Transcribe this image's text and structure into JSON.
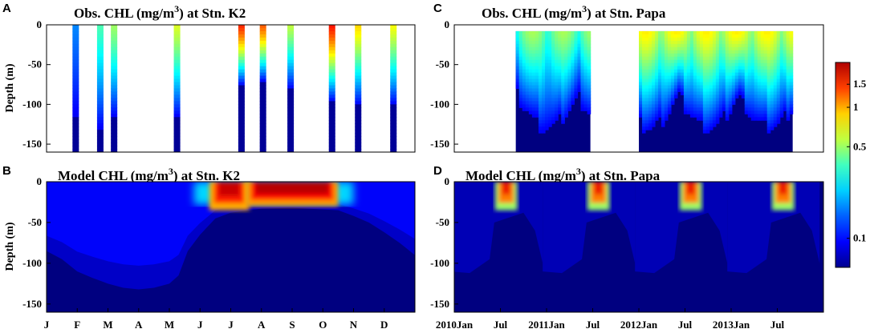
{
  "figure": {
    "colormap_name": "jet",
    "colormap": [
      "#00008f",
      "#0000ff",
      "#0080ff",
      "#00ffff",
      "#80ff80",
      "#ffff00",
      "#ff8000",
      "#ff0000",
      "#800000"
    ],
    "background_color": "#ffffff",
    "deep_color": "#000080"
  },
  "chart_data": [
    {
      "type": "heatmap",
      "panel_label": "A",
      "title_parts": [
        "Obs. CHL (mg/m",
        "3",
        ") at Stn. K2"
      ],
      "ylabel": "Depth (m)",
      "ylim": [
        -160,
        0
      ],
      "yticks": [
        0,
        -50,
        -100,
        -150
      ],
      "xlim": [
        0,
        12
      ],
      "xtick_labels": [],
      "profiles": [
        {
          "x": 0.95,
          "deep_from": -115,
          "surface_chl": 0.15
        },
        {
          "x": 1.75,
          "deep_from": -130,
          "surface_chl": 0.3
        },
        {
          "x": 2.2,
          "deep_from": -115,
          "surface_chl": 0.4
        },
        {
          "x": 4.25,
          "deep_from": -115,
          "surface_chl": 0.5
        },
        {
          "x": 6.35,
          "deep_from": -75,
          "surface_chl": 1.2
        },
        {
          "x": 7.05,
          "deep_from": -70,
          "surface_chl": 1.0
        },
        {
          "x": 7.95,
          "deep_from": -80,
          "surface_chl": 0.45
        },
        {
          "x": 9.3,
          "deep_from": -95,
          "surface_chl": 1.3
        },
        {
          "x": 10.15,
          "deep_from": -100,
          "surface_chl": 0.65
        },
        {
          "x": 11.3,
          "deep_from": -100,
          "surface_chl": 0.55
        }
      ]
    },
    {
      "type": "heatmap",
      "panel_label": "B",
      "title_parts": [
        "Model CHL (mg/m",
        "3",
        ") at Stn. K2"
      ],
      "ylabel": "Depth (m)",
      "ylim": [
        -160,
        0
      ],
      "yticks": [
        0,
        -50,
        -100,
        -150
      ],
      "xlim": [
        0,
        12
      ],
      "xtick_labels": [
        "J",
        "F",
        "M",
        "A",
        "M",
        "J",
        "J",
        "A",
        "S",
        "O",
        "N",
        "D"
      ],
      "xtick_positions": [
        0,
        1,
        2,
        3,
        4,
        5,
        6,
        7,
        8,
        9,
        10,
        11
      ],
      "mixed_layer_bottom": [
        [
          0,
          -85
        ],
        [
          0.5,
          -95
        ],
        [
          1,
          -110
        ],
        [
          1.5,
          -118
        ],
        [
          2,
          -125
        ],
        [
          2.5,
          -130
        ],
        [
          3,
          -132
        ],
        [
          3.5,
          -130
        ],
        [
          4,
          -125
        ],
        [
          4.3,
          -115
        ],
        [
          4.6,
          -85
        ],
        [
          5,
          -65
        ],
        [
          5.5,
          -45
        ],
        [
          6,
          -38
        ],
        [
          7,
          -33
        ],
        [
          8,
          -32
        ],
        [
          9,
          -34
        ],
        [
          9.5,
          -35
        ],
        [
          10,
          -42
        ],
        [
          10.5,
          -50
        ],
        [
          11,
          -62
        ],
        [
          11.5,
          -75
        ],
        [
          12,
          -90
        ]
      ],
      "bloom_patches": [
        {
          "x_from": 5.3,
          "x_to": 6.6,
          "depth_to": -35,
          "peak": 1.7
        },
        {
          "x_from": 6.5,
          "x_to": 9.5,
          "depth_to": -30,
          "peak": 1.8
        }
      ]
    },
    {
      "type": "heatmap",
      "panel_label": "C",
      "title_parts": [
        "Obs. CHL (mg/m",
        "3",
        ") at Stn. Papa"
      ],
      "ylabel": "",
      "ylim": [
        -160,
        0
      ],
      "yticks": [
        0,
        -50,
        -100,
        -150
      ],
      "xlim": [
        0,
        48
      ],
      "xtick_labels": [],
      "observation_blocks": [
        {
          "x_from": 8.0,
          "x_to": 17.7,
          "surface_chl": 0.35
        },
        {
          "x_from": 24.0,
          "x_to": 44.0,
          "surface_chl": 0.5
        }
      ]
    },
    {
      "type": "heatmap",
      "panel_label": "D",
      "title_parts": [
        "Model CHL (mg/m",
        "3",
        ") at Stn. Papa"
      ],
      "ylabel": "",
      "ylim": [
        -160,
        0
      ],
      "yticks": [
        0,
        -50,
        -100,
        -150
      ],
      "xlim": [
        0,
        48
      ],
      "xtick_labels": [
        "2010Jan",
        "Jul",
        "2011Jan",
        "Jul",
        "2012Jan",
        "Jul",
        "2013Jan",
        "Jul"
      ],
      "xtick_positions": [
        0,
        6,
        12,
        18,
        24,
        30,
        36,
        42
      ],
      "summer_blooms": [
        {
          "x_from": 5.3,
          "x_to": 8.2,
          "depth_to": -35,
          "peak": 1.5
        },
        {
          "x_from": 17.3,
          "x_to": 20.2,
          "depth_to": -35,
          "peak": 1.5
        },
        {
          "x_from": 29.3,
          "x_to": 32.2,
          "depth_to": -35,
          "peak": 1.5
        },
        {
          "x_from": 41.3,
          "x_to": 44.2,
          "depth_to": -35,
          "peak": 1.5
        }
      ]
    }
  ],
  "colorbar": {
    "scale": "log",
    "min": 0.06,
    "max": 2.2,
    "tick_values": [
      0.1,
      0.5,
      1,
      1.5
    ],
    "tick_labels": [
      "0.1",
      "0.5",
      "1",
      "1.5"
    ]
  }
}
